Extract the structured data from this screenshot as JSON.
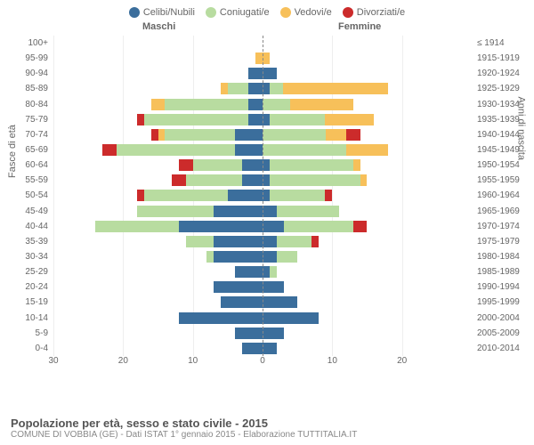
{
  "legend": [
    {
      "label": "Celibi/Nubili",
      "color": "#3b6e9c"
    },
    {
      "label": "Coniugati/e",
      "color": "#b8dca0"
    },
    {
      "label": "Vedovi/e",
      "color": "#f7c05a"
    },
    {
      "label": "Divorziati/e",
      "color": "#cc2b2b"
    }
  ],
  "gender": {
    "left": "Maschi",
    "right": "Femmine"
  },
  "axes": {
    "y_left_title": "Fasce di età",
    "y_right_title": "Anni di nascita",
    "x_ticks": [
      30,
      20,
      10,
      0,
      10,
      20
    ],
    "x_max": 30
  },
  "colors": {
    "celibi": "#3b6e9c",
    "coniugati": "#b8dca0",
    "vedovi": "#f7c05a",
    "divorziati": "#cc2b2b",
    "grid": "#eeeeee",
    "center": "#888888",
    "background": "#ffffff",
    "text": "#666666"
  },
  "typography": {
    "legend_fontsize": 11,
    "tick_fontsize": 10,
    "title_fontsize": 13
  },
  "rows": [
    {
      "age": "100+",
      "birth": "≤ 1914",
      "m": [
        0,
        0,
        0,
        0
      ],
      "f": [
        0,
        0,
        0,
        0
      ]
    },
    {
      "age": "95-99",
      "birth": "1915-1919",
      "m": [
        0,
        0,
        1,
        0
      ],
      "f": [
        0,
        0,
        1,
        0
      ]
    },
    {
      "age": "90-94",
      "birth": "1920-1924",
      "m": [
        2,
        0,
        0,
        0
      ],
      "f": [
        2,
        0,
        0,
        0
      ]
    },
    {
      "age": "85-89",
      "birth": "1925-1929",
      "m": [
        2,
        3,
        1,
        0
      ],
      "f": [
        1,
        2,
        15,
        0
      ]
    },
    {
      "age": "80-84",
      "birth": "1930-1934",
      "m": [
        2,
        12,
        2,
        0
      ],
      "f": [
        0,
        4,
        9,
        0
      ]
    },
    {
      "age": "75-79",
      "birth": "1935-1939",
      "m": [
        2,
        15,
        0,
        1
      ],
      "f": [
        1,
        8,
        7,
        0
      ]
    },
    {
      "age": "70-74",
      "birth": "1940-1944",
      "m": [
        4,
        10,
        1,
        1
      ],
      "f": [
        0,
        9,
        3,
        2
      ]
    },
    {
      "age": "65-69",
      "birth": "1945-1949",
      "m": [
        4,
        17,
        0,
        2
      ],
      "f": [
        0,
        12,
        6,
        0
      ]
    },
    {
      "age": "60-64",
      "birth": "1950-1954",
      "m": [
        3,
        7,
        0,
        2
      ],
      "f": [
        1,
        12,
        1,
        0
      ]
    },
    {
      "age": "55-59",
      "birth": "1955-1959",
      "m": [
        3,
        8,
        0,
        2
      ],
      "f": [
        1,
        13,
        1,
        0
      ]
    },
    {
      "age": "50-54",
      "birth": "1960-1964",
      "m": [
        5,
        12,
        0,
        1
      ],
      "f": [
        1,
        8,
        0,
        1
      ]
    },
    {
      "age": "45-49",
      "birth": "1965-1969",
      "m": [
        7,
        11,
        0,
        0
      ],
      "f": [
        2,
        9,
        0,
        0
      ]
    },
    {
      "age": "40-44",
      "birth": "1970-1974",
      "m": [
        12,
        12,
        0,
        0
      ],
      "f": [
        3,
        10,
        0,
        2
      ]
    },
    {
      "age": "35-39",
      "birth": "1975-1979",
      "m": [
        7,
        4,
        0,
        0
      ],
      "f": [
        2,
        5,
        0,
        1
      ]
    },
    {
      "age": "30-34",
      "birth": "1980-1984",
      "m": [
        7,
        1,
        0,
        0
      ],
      "f": [
        2,
        3,
        0,
        0
      ]
    },
    {
      "age": "25-29",
      "birth": "1985-1989",
      "m": [
        4,
        0,
        0,
        0
      ],
      "f": [
        1,
        1,
        0,
        0
      ]
    },
    {
      "age": "20-24",
      "birth": "1990-1994",
      "m": [
        7,
        0,
        0,
        0
      ],
      "f": [
        3,
        0,
        0,
        0
      ]
    },
    {
      "age": "15-19",
      "birth": "1995-1999",
      "m": [
        6,
        0,
        0,
        0
      ],
      "f": [
        5,
        0,
        0,
        0
      ]
    },
    {
      "age": "10-14",
      "birth": "2000-2004",
      "m": [
        12,
        0,
        0,
        0
      ],
      "f": [
        8,
        0,
        0,
        0
      ]
    },
    {
      "age": "5-9",
      "birth": "2005-2009",
      "m": [
        4,
        0,
        0,
        0
      ],
      "f": [
        3,
        0,
        0,
        0
      ]
    },
    {
      "age": "0-4",
      "birth": "2010-2014",
      "m": [
        3,
        0,
        0,
        0
      ],
      "f": [
        2,
        0,
        0,
        0
      ]
    }
  ],
  "footer": {
    "title": "Popolazione per età, sesso e stato civile - 2015",
    "subtitle": "COMUNE DI VOBBIA (GE) - Dati ISTAT 1° gennaio 2015 - Elaborazione TUTTITALIA.IT"
  }
}
